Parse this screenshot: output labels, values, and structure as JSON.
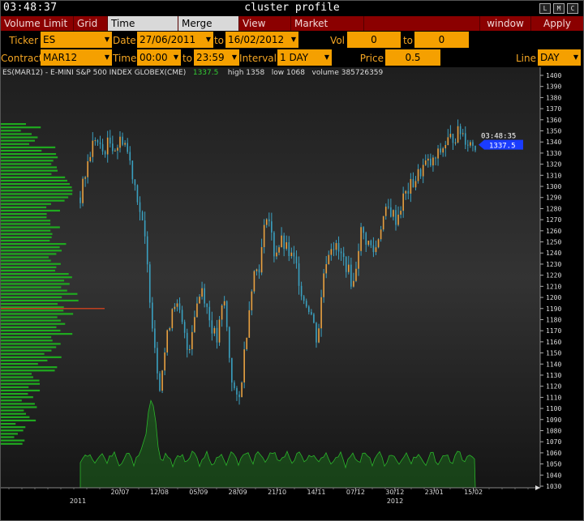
{
  "titlebar": {
    "clock": "03:48:37",
    "title": "cluster profile",
    "buttons": [
      "L",
      "M",
      "C"
    ]
  },
  "menu": {
    "items": [
      "Volume Limit",
      "Grid",
      "Time Interval",
      "Merge Contr",
      "View DOM",
      "Market Watch"
    ],
    "active": "Time Interval",
    "window_label": "window",
    "apply_label": "Apply"
  },
  "row1": {
    "ticker_label": "Ticker",
    "ticker_value": "ES",
    "date_label": "Date",
    "date_from": "27/06/2011",
    "to_label": "to",
    "date_to": "16/02/2012",
    "volrange_label": "Vol range",
    "vol_from": "0",
    "vol_to_label": "to",
    "vol_to": "0"
  },
  "row2": {
    "contract_label": "Contract",
    "contract_value": "MAR12",
    "time_label": "Time",
    "time_from": "00:00",
    "to_label": "to",
    "time_to": "23:59",
    "interval_label": "Interval",
    "interval_value": "1 DAY",
    "pricescale_label": "Price Scale",
    "pricescale_value": "0.5",
    "line_label": "Line",
    "line_value": "DAY"
  },
  "info": {
    "symbol": "ES(MAR12) - E-MINI S&P 500 INDEX GLOBEX(CME)",
    "last": "1337.5",
    "high": "high 1358",
    "low": "low 1068",
    "volume": "volume 385726359"
  },
  "chart_data": {
    "type": "candlestick",
    "y_ticks": [
      1030,
      1040,
      1050,
      1060,
      1070,
      1080,
      1090,
      1100,
      1110,
      1120,
      1130,
      1140,
      1150,
      1160,
      1170,
      1180,
      1190,
      1200,
      1210,
      1220,
      1230,
      1240,
      1250,
      1260,
      1270,
      1280,
      1290,
      1300,
      1310,
      1320,
      1330,
      1340,
      1350,
      1360,
      1370,
      1380,
      1390,
      1400
    ],
    "ylim": [
      1030,
      1400
    ],
    "x_ticks": [
      "20/07",
      "12/08",
      "05/09",
      "28/09",
      "21/10",
      "14/11",
      "07/12",
      "30/12",
      "23/01",
      "15/02"
    ],
    "year_labels": [
      "2011",
      "2012"
    ],
    "last_time_label": "03:48:35",
    "last_price_label": "1337.5",
    "last_price": 1337.5,
    "high": 1358,
    "low": 1068,
    "close_path": [
      1290,
      1320,
      1345,
      1330,
      1340,
      1335,
      1345,
      1320,
      1290,
      1250,
      1180,
      1120,
      1160,
      1200,
      1180,
      1150,
      1190,
      1210,
      1180,
      1160,
      1200,
      1130,
      1100,
      1160,
      1220,
      1230,
      1280,
      1240,
      1250,
      1240,
      1230,
      1200,
      1190,
      1160,
      1230,
      1250,
      1240,
      1230,
      1210,
      1260,
      1250,
      1240,
      1270,
      1280,
      1270,
      1290,
      1300,
      1310,
      1320,
      1320,
      1330,
      1340,
      1345,
      1350,
      1340,
      1337.5
    ],
    "colors": {
      "bull": "#e8a040",
      "bear": "#3aa0c0",
      "profile": "#1faa1f",
      "poc": "#c04020",
      "last_tag": "#1a3cff"
    }
  }
}
